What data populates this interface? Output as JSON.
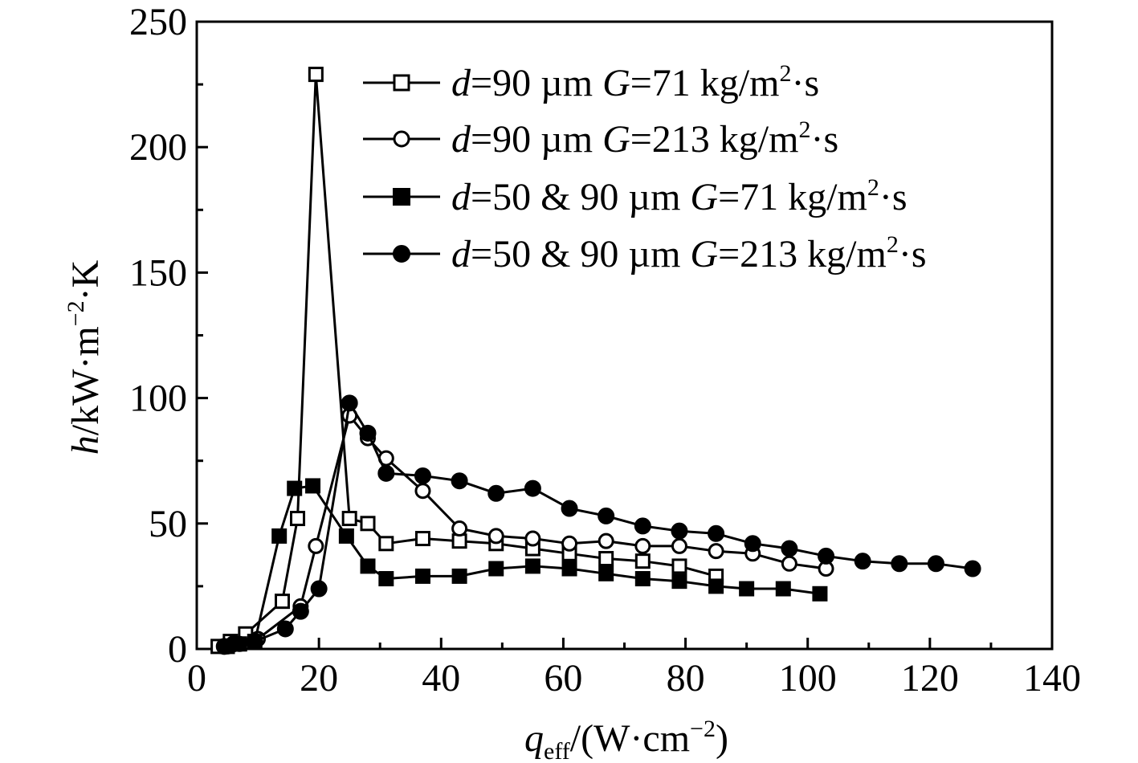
{
  "chart_data": {
    "type": "line",
    "xlabel": {
      "var": "q",
      "sub": "eff",
      "unit": "/(W·cm",
      "exp": "−2",
      "close": ")"
    },
    "ylabel": {
      "var": "h",
      "unit": "/kW·m",
      "exp": "−2",
      "tail": "·K"
    },
    "xlim": [
      0,
      140
    ],
    "ylim": [
      0,
      250
    ],
    "xticks": [
      0,
      20,
      40,
      60,
      80,
      100,
      120,
      140
    ],
    "yticks": [
      0,
      50,
      100,
      150,
      200,
      250
    ],
    "legend_position": "top-right",
    "series": [
      {
        "name": "d=90 µm G=71 kg/m²·s",
        "legend": {
          "d": "d",
          "dval": "=90 µm ",
          "g": "G",
          "gval": "=71 kg/m",
          "sup": "2",
          "tail": "·s"
        },
        "marker": "square-open",
        "x": [
          3.5,
          5.5,
          8,
          14,
          16.5,
          19.5,
          25,
          28,
          31,
          37,
          43,
          49,
          55,
          61,
          67,
          73,
          79,
          85
        ],
        "y": [
          1,
          3,
          6,
          19,
          52,
          229,
          52,
          50,
          42,
          44,
          43,
          42,
          40,
          38,
          36,
          35,
          33,
          29
        ]
      },
      {
        "name": "d=90 µm G=213 kg/m²·s",
        "legend": {
          "d": "d",
          "dval": "=90 µm ",
          "g": "G",
          "gval": "=213 kg/m",
          "sup": "2",
          "tail": "·s"
        },
        "marker": "circle-open",
        "x": [
          5,
          7,
          10,
          17,
          19.5,
          25,
          28,
          31,
          37,
          43,
          49,
          55,
          61,
          67,
          73,
          79,
          85,
          91,
          97,
          103
        ],
        "y": [
          1,
          2,
          4,
          17,
          41,
          93,
          84,
          76,
          63,
          48,
          45,
          44,
          42,
          43,
          41,
          41,
          39,
          38,
          34,
          32
        ]
      },
      {
        "name": "d=50 & 90 µm G=71 kg/m²·s",
        "legend": {
          "d": "d",
          "dval": "=50 & 90 µm ",
          "g": "G",
          "gval": "=71 kg/m",
          "sup": "2",
          "tail": "·s"
        },
        "marker": "square-filled",
        "x": [
          5,
          7,
          9.5,
          13.5,
          16,
          19,
          24.5,
          28,
          31,
          37,
          43,
          49,
          55,
          61,
          67,
          73,
          79,
          85,
          90,
          96,
          102
        ],
        "y": [
          1,
          2,
          3,
          45,
          64,
          65,
          45,
          33,
          28,
          29,
          29,
          32,
          33,
          32,
          30,
          28,
          27,
          25,
          24,
          24,
          22
        ]
      },
      {
        "name": "d=50 & 90 µm G=213 kg/m²·s",
        "legend": {
          "d": "d",
          "dval": "=50 & 90 µm ",
          "g": "G",
          "gval": "=213 kg/m",
          "sup": "2",
          "tail": "·s"
        },
        "marker": "circle-filled",
        "x": [
          4.5,
          6,
          9.5,
          14.5,
          17,
          20,
          25,
          28,
          31,
          37,
          43,
          49,
          55,
          61,
          67,
          73,
          79,
          85,
          91,
          97,
          103,
          109,
          115,
          121,
          127
        ],
        "y": [
          1,
          2,
          3,
          8,
          15,
          24,
          98,
          86,
          70,
          69,
          67,
          62,
          64,
          56,
          53,
          49,
          47,
          46,
          42,
          40,
          37,
          35,
          34,
          34,
          32
        ]
      }
    ]
  }
}
